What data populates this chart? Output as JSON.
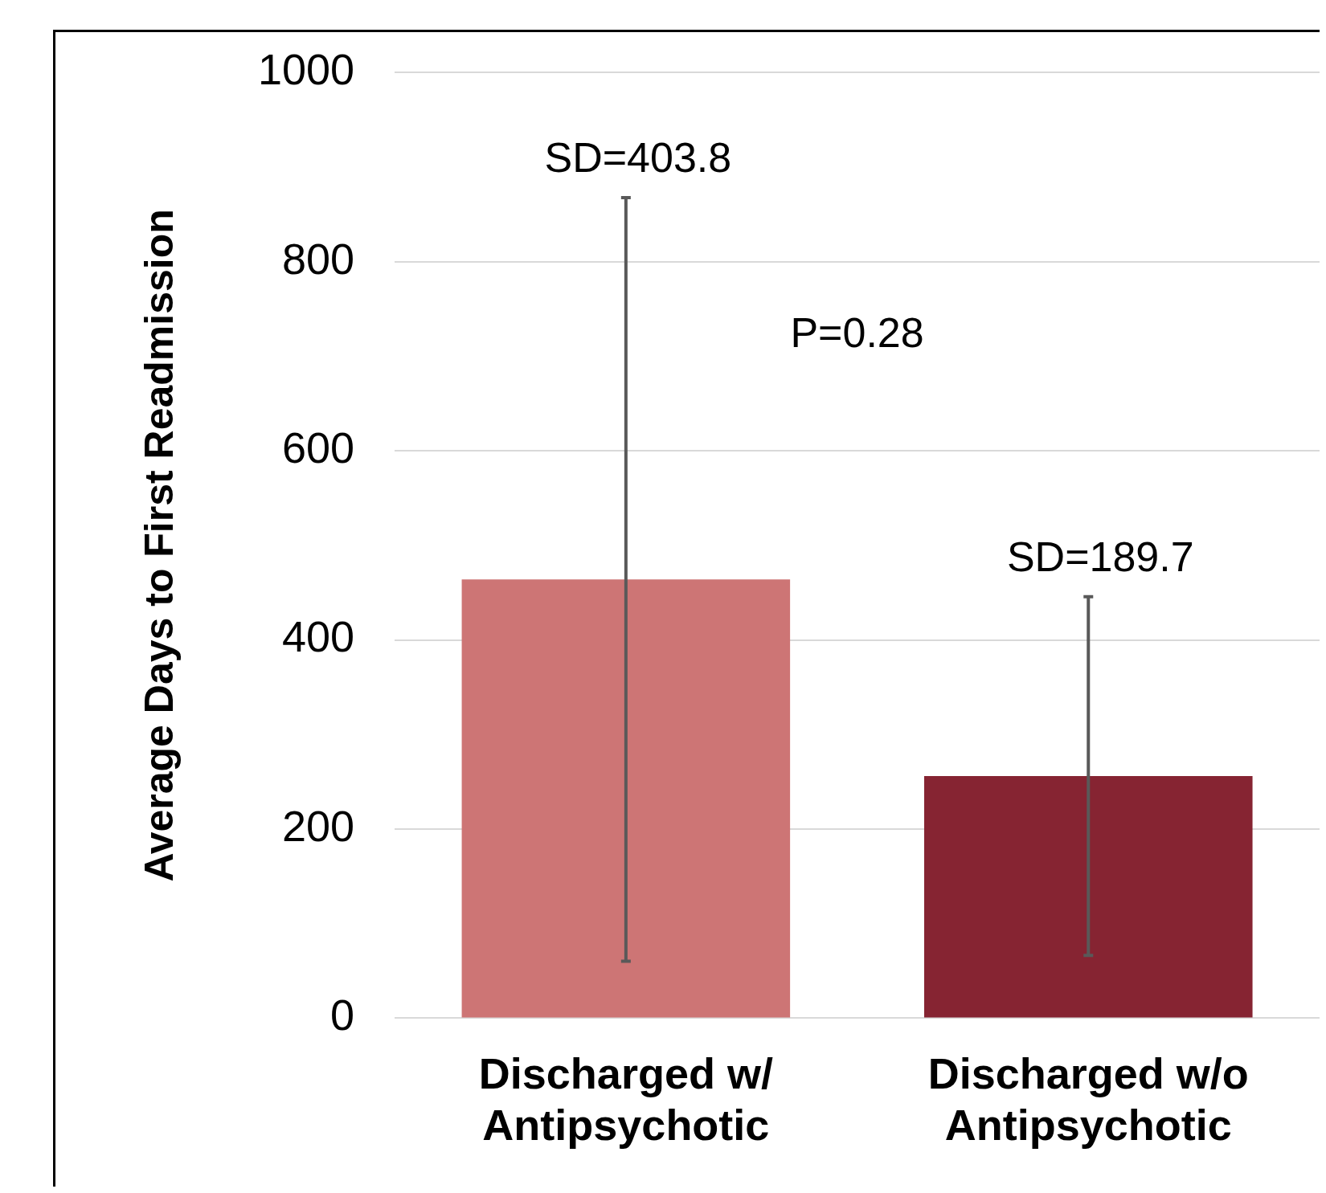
{
  "chart_data": {
    "type": "bar",
    "ylabel": "Average Days to First Readmission",
    "categories": [
      "Discharged w/ Antipsychotic",
      "Discharged w/o Antipsychotic"
    ],
    "values": [
      464,
      256
    ],
    "colors": [
      "#cd7575",
      "#862432"
    ],
    "errors": [
      403.8,
      189.7
    ],
    "ylim": [
      0,
      1000
    ],
    "yticks": [
      0,
      200,
      400,
      600,
      800,
      1000
    ],
    "grid": "y",
    "legend": false,
    "annotations": [
      {
        "text": "SD=403.8",
        "x": "Discharged w/ Antipsychotic",
        "y": 867.8
      },
      {
        "text": "SD=189.7",
        "x": "Discharged w/o Antipsychotic",
        "y": 445.7
      },
      "P=0.28"
    ]
  }
}
